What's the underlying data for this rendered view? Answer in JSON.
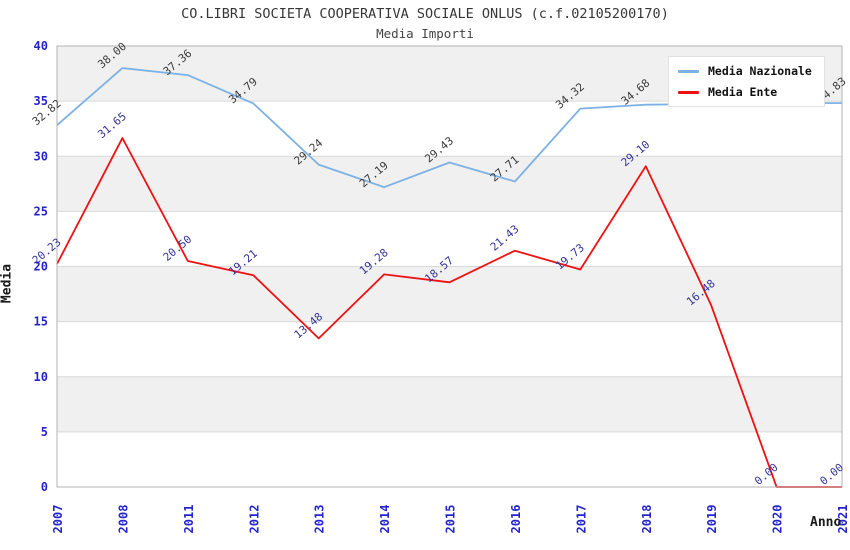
{
  "chart_data": {
    "type": "line",
    "title": "CO.LIBRI SOCIETA COOPERATIVA SOCIALE ONLUS (c.f.02105200170)",
    "subtitle": "Media Importi",
    "xlabel": "Anno",
    "ylabel": "Media",
    "ylim": [
      0,
      40
    ],
    "y_ticks": [
      0,
      5,
      10,
      15,
      20,
      25,
      30,
      35,
      40
    ],
    "grid": true,
    "legend_position": "top-right",
    "categories": [
      "2007",
      "2008",
      "2011",
      "2012",
      "2013",
      "2014",
      "2015",
      "2016",
      "2017",
      "2018",
      "2019",
      "2020",
      "2021"
    ],
    "series": [
      {
        "name": "Media Nazionale",
        "color": "#7db1e4",
        "label_color": "#3a3a3a",
        "values": [
          32.82,
          38.0,
          37.36,
          34.79,
          29.24,
          27.19,
          29.43,
          27.71,
          34.32,
          34.68,
          34.74,
          34.79,
          34.83
        ],
        "labels": [
          "32.82",
          "38.00",
          "37.36",
          "34.79",
          "29.24",
          "27.19",
          "29.43",
          "27.71",
          "34.32",
          "34.68",
          null,
          null,
          "34.83"
        ]
      },
      {
        "name": "Media Ente",
        "color": "#ee1111",
        "label_color": "#333399",
        "values": [
          20.23,
          31.65,
          20.5,
          19.21,
          13.48,
          19.28,
          18.57,
          21.43,
          19.73,
          29.1,
          16.48,
          0.0,
          0.0
        ],
        "labels": [
          "20.23",
          "31.65",
          "20.50",
          "19.21",
          "13.48",
          "19.28",
          "18.57",
          "21.43",
          "19.73",
          "29.10",
          "16.48",
          "0.00",
          "0.00"
        ]
      }
    ],
    "style": {
      "band_fill": "#f0f0f0",
      "grid_color": "#d9d9d9",
      "border_color": "#b3b3b3",
      "tick_label_color": "#2424cf"
    }
  }
}
